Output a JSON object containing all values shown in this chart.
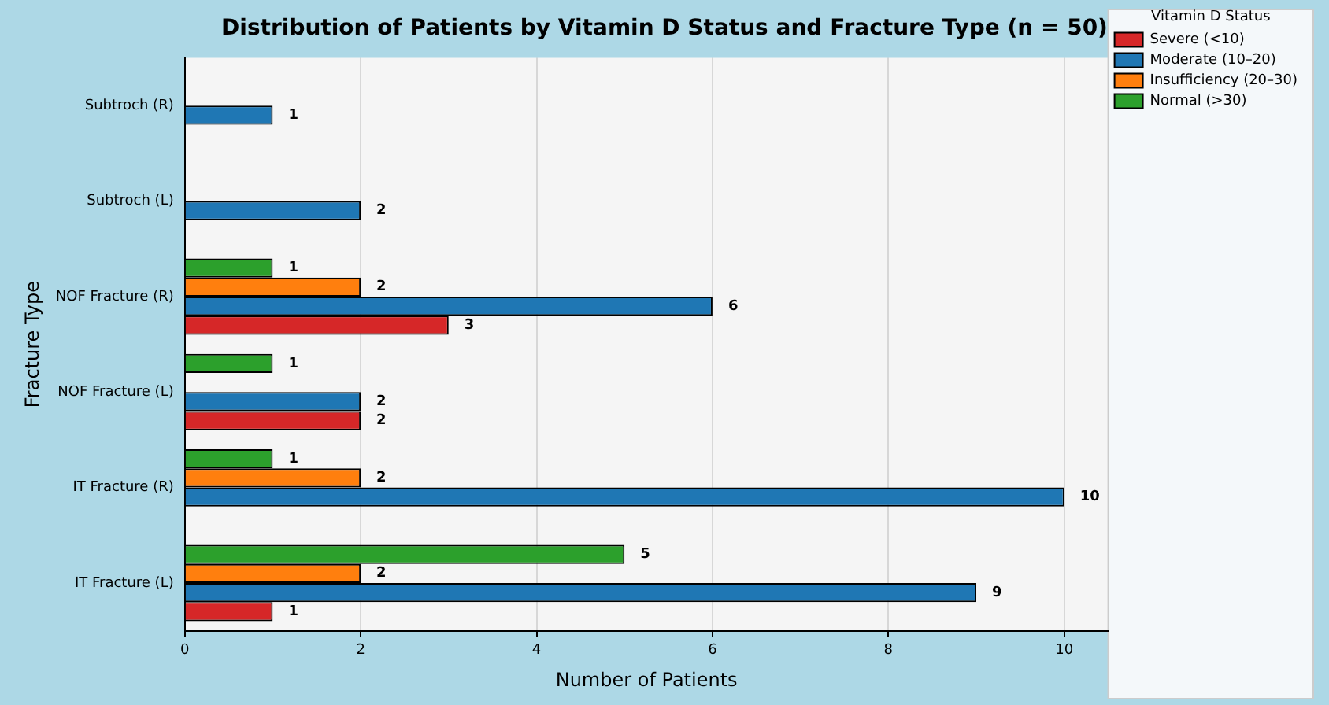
{
  "chart_data": {
    "type": "bar",
    "orientation": "horizontal",
    "title": "Distribution of Patients by Vitamin D Status and Fracture Type (n = 50)",
    "xlabel": "Number of Patients",
    "ylabel": "Fracture Type",
    "legend_title": "Vitamin D Status",
    "categories": [
      "Subtroch (R)",
      "Subtroch (L)",
      "NOF Fracture (R)",
      "NOF Fracture (L)",
      "IT Fracture (R)",
      "IT Fracture (L)"
    ],
    "series": [
      {
        "name": "Severe (<10)",
        "color": "#d62728",
        "values": [
          null,
          null,
          3,
          2,
          null,
          1
        ]
      },
      {
        "name": "Moderate (10–20)",
        "color": "#1f77b4",
        "values": [
          1,
          2,
          6,
          2,
          10,
          9
        ]
      },
      {
        "name": "Insufficiency (20–30)",
        "color": "#ff7f0e",
        "values": [
          null,
          null,
          2,
          null,
          2,
          2
        ]
      },
      {
        "name": "Normal (>30)",
        "color": "#2ca02c",
        "values": [
          null,
          null,
          1,
          1,
          1,
          5
        ]
      }
    ],
    "xlim": [
      0,
      10.5
    ],
    "xticks": [
      0,
      2,
      4,
      6,
      8,
      10
    ],
    "grid": "x",
    "legend": "top right",
    "data_labels": true
  }
}
